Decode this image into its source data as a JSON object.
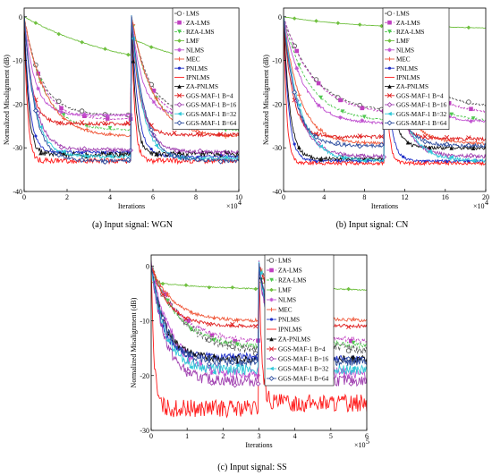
{
  "figure": {
    "captions": [
      "(a)  Input signal: WGN",
      "(b)  Input signal: CN",
      "(c)  Input signal: SS"
    ]
  },
  "legend_entries": [
    {
      "name": "LMS",
      "color": "#555555",
      "marker": "circle-open",
      "dash": "3,2"
    },
    {
      "name": "ZA-LMS",
      "color": "#c040c0",
      "marker": "square",
      "dash": "3,2"
    },
    {
      "name": "RZA-LMS",
      "color": "#50c850",
      "marker": "triangle-down",
      "dash": "3,2"
    },
    {
      "name": "LMF",
      "color": "#70c040",
      "marker": "diamond",
      "dash": ""
    },
    {
      "name": "NLMS",
      "color": "#c050d0",
      "marker": "star",
      "dash": ""
    },
    {
      "name": "MEC",
      "color": "#f05a3c",
      "marker": "plus",
      "dash": ""
    },
    {
      "name": "PNLMS",
      "color": "#2030c8",
      "marker": "dot",
      "dash": ""
    },
    {
      "name": "IPNLMS",
      "color": "#ff1a1a",
      "marker": "none",
      "dash": ""
    },
    {
      "name": "ZA-PNLMS",
      "color": "#111111",
      "marker": "triangle-up",
      "dash": ""
    },
    {
      "name": "GGS-MAF-1 B=4",
      "color": "#e02020",
      "marker": "x",
      "dash": ""
    },
    {
      "name": "GGS-MAF-1 B=16",
      "color": "#a040b0",
      "marker": "diamond-open",
      "dash": ""
    },
    {
      "name": "GGS-MAF-1 B=32",
      "color": "#30c8d8",
      "marker": "triangle-left",
      "dash": ""
    },
    {
      "name": "GGS-MAF-1 B=64",
      "color": "#3050a0",
      "marker": "diamond-open",
      "dash": ""
    }
  ],
  "chart_data": [
    {
      "type": "line",
      "caption": "(a)  Input signal: WGN",
      "xlabel": "Iterations",
      "ylabel": "Normalized Misalignment (dB)",
      "xlim": [
        0,
        10
      ],
      "ylim": [
        -40,
        2
      ],
      "x_multiplier": "×10",
      "x_multiplier_exp": "4",
      "xticks": [
        0,
        2,
        4,
        6,
        8,
        10
      ],
      "yticks": [
        0,
        -10,
        -20,
        -30,
        -40
      ],
      "switch_x": 5,
      "series": [
        {
          "name": "LMS",
          "start1": 0,
          "final1": -22.5,
          "tau1": 0.8,
          "start2": 0,
          "final2": -22.5,
          "tau2": 0.8,
          "noise": 0.2
        },
        {
          "name": "ZA-LMS",
          "start1": 0,
          "final1": -23.5,
          "tau1": 0.8,
          "start2": 0,
          "final2": -23.5,
          "tau2": 0.8,
          "noise": 0.2
        },
        {
          "name": "RZA-LMS",
          "start1": 0,
          "final1": -26,
          "tau1": 0.9,
          "start2": 0,
          "final2": -26,
          "tau2": 0.9,
          "noise": 0.2
        },
        {
          "name": "LMF",
          "start1": 0,
          "final1": -14,
          "tau1": 5.0,
          "start2": -5,
          "final2": -14,
          "tau2": 4.0,
          "noise": 0.1
        },
        {
          "name": "NLMS",
          "start1": 0,
          "final1": -22.5,
          "tau1": 0.5,
          "start2": 0,
          "final2": -22.5,
          "tau2": 0.5,
          "noise": 0.3
        },
        {
          "name": "MEC",
          "start1": 0,
          "final1": -27.5,
          "tau1": 1.0,
          "start2": 0,
          "final2": -27.5,
          "tau2": 1.0,
          "noise": 0.3
        },
        {
          "name": "PNLMS",
          "start1": 0,
          "final1": -31,
          "tau1": 0.25,
          "start2": 0,
          "final2": -32,
          "tau2": 0.3,
          "noise": 0.3
        },
        {
          "name": "IPNLMS",
          "start1": 0,
          "final1": -33,
          "tau1": 0.15,
          "start2": 0,
          "final2": -33,
          "tau2": 0.15,
          "noise": 0.6
        },
        {
          "name": "ZA-PNLMS",
          "start1": 0,
          "final1": -31.5,
          "tau1": 0.2,
          "start2": 0,
          "final2": -31.5,
          "tau2": 0.2,
          "noise": 0.7
        },
        {
          "name": "GGS-MAF-1 B=4",
          "start1": 0,
          "final1": -24.5,
          "tau1": 0.35,
          "start2": 0,
          "final2": -27,
          "tau2": 0.35,
          "noise": 0.4
        },
        {
          "name": "GGS-MAF-1 B=16",
          "start1": 0,
          "final1": -30.5,
          "tau1": 0.5,
          "start2": 0,
          "final2": -31,
          "tau2": 0.5,
          "noise": 0.4
        },
        {
          "name": "GGS-MAF-1 B=32",
          "start1": 0,
          "final1": -32,
          "tau1": 0.5,
          "start2": 0,
          "final2": -32.5,
          "tau2": 0.5,
          "noise": 0.4
        },
        {
          "name": "GGS-MAF-1 B=64",
          "start1": 0,
          "final1": -33,
          "tau1": 0.5,
          "start2": 0,
          "final2": -33,
          "tau2": 0.6,
          "noise": 0.4
        }
      ]
    },
    {
      "type": "line",
      "caption": "(b)  Input signal: CN",
      "xlabel": "Iterations",
      "ylabel": "Normalized Misalignment (dB)",
      "xlim": [
        0,
        20
      ],
      "ylim": [
        -40,
        2
      ],
      "x_multiplier": "×10",
      "x_multiplier_exp": "4",
      "xticks": [
        0,
        4,
        8,
        12,
        16,
        20
      ],
      "yticks": [
        0,
        -10,
        -20,
        -30,
        -40
      ],
      "switch_x": 10,
      "series": [
        {
          "name": "LMS",
          "start1": 0,
          "final1": -22,
          "tau1": 3.0,
          "start2": 0,
          "final2": -21,
          "tau2": 3.0,
          "noise": 0.2
        },
        {
          "name": "ZA-LMS",
          "start1": 0,
          "final1": -22.5,
          "tau1": 3.0,
          "start2": 0,
          "final2": -22.5,
          "tau2": 3.0,
          "noise": 0.2
        },
        {
          "name": "RZA-LMS",
          "start1": 0,
          "final1": -24,
          "tau1": 2.5,
          "start2": 0,
          "final2": -24,
          "tau2": 2.5,
          "noise": 0.2
        },
        {
          "name": "LMF",
          "start1": 0,
          "final1": -3,
          "tau1": 8.0,
          "start2": -1.5,
          "final2": -2.8,
          "tau2": 6.0,
          "noise": 0.05
        },
        {
          "name": "NLMS",
          "start1": 0,
          "final1": -24.5,
          "tau1": 2.0,
          "start2": 0,
          "final2": -24,
          "tau2": 2.0,
          "noise": 0.3
        },
        {
          "name": "MEC",
          "start1": 0,
          "final1": -29,
          "tau1": 1.6,
          "start2": 0,
          "final2": -29,
          "tau2": 1.6,
          "noise": 0.3
        },
        {
          "name": "PNLMS",
          "start1": 0,
          "final1": -33,
          "tau1": 0.5,
          "start2": 0,
          "final2": -33,
          "tau2": 0.5,
          "noise": 0.3
        },
        {
          "name": "IPNLMS",
          "start1": 0,
          "final1": -33.5,
          "tau1": 0.3,
          "start2": 0,
          "final2": -33.5,
          "tau2": 0.3,
          "noise": 0.4
        },
        {
          "name": "ZA-PNLMS",
          "start1": 0,
          "final1": -32.5,
          "tau1": 0.6,
          "start2": 0,
          "final2": -30,
          "tau2": 0.7,
          "noise": 0.4
        },
        {
          "name": "GGS-MAF-1 B=4",
          "start1": 0,
          "final1": -27.5,
          "tau1": 0.9,
          "start2": 0,
          "final2": -28,
          "tau2": 0.9,
          "noise": 0.4
        },
        {
          "name": "GGS-MAF-1 B=16",
          "start1": 0,
          "final1": -32,
          "tau1": 1.4,
          "start2": 0,
          "final2": -32,
          "tau2": 1.4,
          "noise": 0.4
        },
        {
          "name": "GGS-MAF-1 B=32",
          "start1": 0,
          "final1": -33,
          "tau1": 1.6,
          "start2": 0,
          "final2": -33,
          "tau2": 1.6,
          "noise": 0.4
        },
        {
          "name": "GGS-MAF-1 B=64",
          "start1": 0,
          "final1": -29.5,
          "tau1": 1.2,
          "start2": 0,
          "final2": -29.5,
          "tau2": 1.2,
          "noise": 0.4
        }
      ]
    },
    {
      "type": "line",
      "caption": "(c)  Input signal: SS",
      "xlabel": "Iterations",
      "ylabel": "Normalized Misalignment (dB)",
      "xlim": [
        0,
        6
      ],
      "ylim": [
        -30,
        2
      ],
      "x_multiplier": "×10",
      "x_multiplier_exp": "5",
      "xticks": [
        0,
        1,
        2,
        3,
        4,
        5,
        6
      ],
      "yticks": [
        0,
        -10,
        -20,
        -30
      ],
      "switch_x": 3,
      "series": [
        {
          "name": "LMS",
          "start1": 0,
          "final1": -16,
          "tau1": 0.9,
          "start2": 0,
          "final2": -16,
          "tau2": 0.9,
          "noise": 0.8
        },
        {
          "name": "ZA-LMS",
          "start1": 0,
          "final1": -14,
          "tau1": 0.8,
          "start2": 0,
          "final2": -14,
          "tau2": 0.8,
          "noise": 0.5
        },
        {
          "name": "RZA-LMS",
          "start1": 0,
          "final1": -15,
          "tau1": 0.8,
          "start2": 0,
          "final2": -15,
          "tau2": 0.8,
          "noise": 0.5
        },
        {
          "name": "LMF",
          "start1": -3,
          "final1": -4.5,
          "tau1": 2.0,
          "start2": -3,
          "final2": -4.8,
          "tau2": 2.0,
          "noise": 0.1
        },
        {
          "name": "NLMS",
          "start1": 0,
          "final1": -20,
          "tau1": 0.6,
          "start2": 0,
          "final2": -20,
          "tau2": 0.6,
          "noise": 1.0
        },
        {
          "name": "MEC",
          "start1": 0,
          "final1": -10,
          "tau1": 0.6,
          "start2": 0,
          "final2": -10,
          "tau2": 0.6,
          "noise": 0.3
        },
        {
          "name": "PNLMS",
          "start1": 0,
          "final1": -16.5,
          "tau1": 0.3,
          "start2": 0,
          "final2": -17,
          "tau2": 0.3,
          "noise": 0.6
        },
        {
          "name": "IPNLMS",
          "start1": 0,
          "final1": -26,
          "tau1": 0.08,
          "start2": 0,
          "final2": -25,
          "tau2": 0.08,
          "noise": 1.6
        },
        {
          "name": "ZA-PNLMS",
          "start1": 0,
          "final1": -17,
          "tau1": 0.4,
          "start2": 0,
          "final2": -17,
          "tau2": 0.4,
          "noise": 0.7
        },
        {
          "name": "GGS-MAF-1 B=4",
          "start1": 0,
          "final1": -11,
          "tau1": 0.5,
          "start2": 0,
          "final2": -11,
          "tau2": 0.5,
          "noise": 0.3
        },
        {
          "name": "GGS-MAF-1 B=16",
          "start1": 0,
          "final1": -21,
          "tau1": 0.4,
          "start2": 0,
          "final2": -21,
          "tau2": 0.4,
          "noise": 1.0
        },
        {
          "name": "GGS-MAF-1 B=32",
          "start1": 0,
          "final1": -19,
          "tau1": 0.4,
          "start2": 0,
          "final2": -19,
          "tau2": 0.4,
          "noise": 0.9
        },
        {
          "name": "GGS-MAF-1 B=64",
          "start1": 0,
          "final1": -17.5,
          "tau1": 0.4,
          "start2": 0,
          "final2": -17.5,
          "tau2": 0.4,
          "noise": 0.8
        }
      ]
    }
  ]
}
